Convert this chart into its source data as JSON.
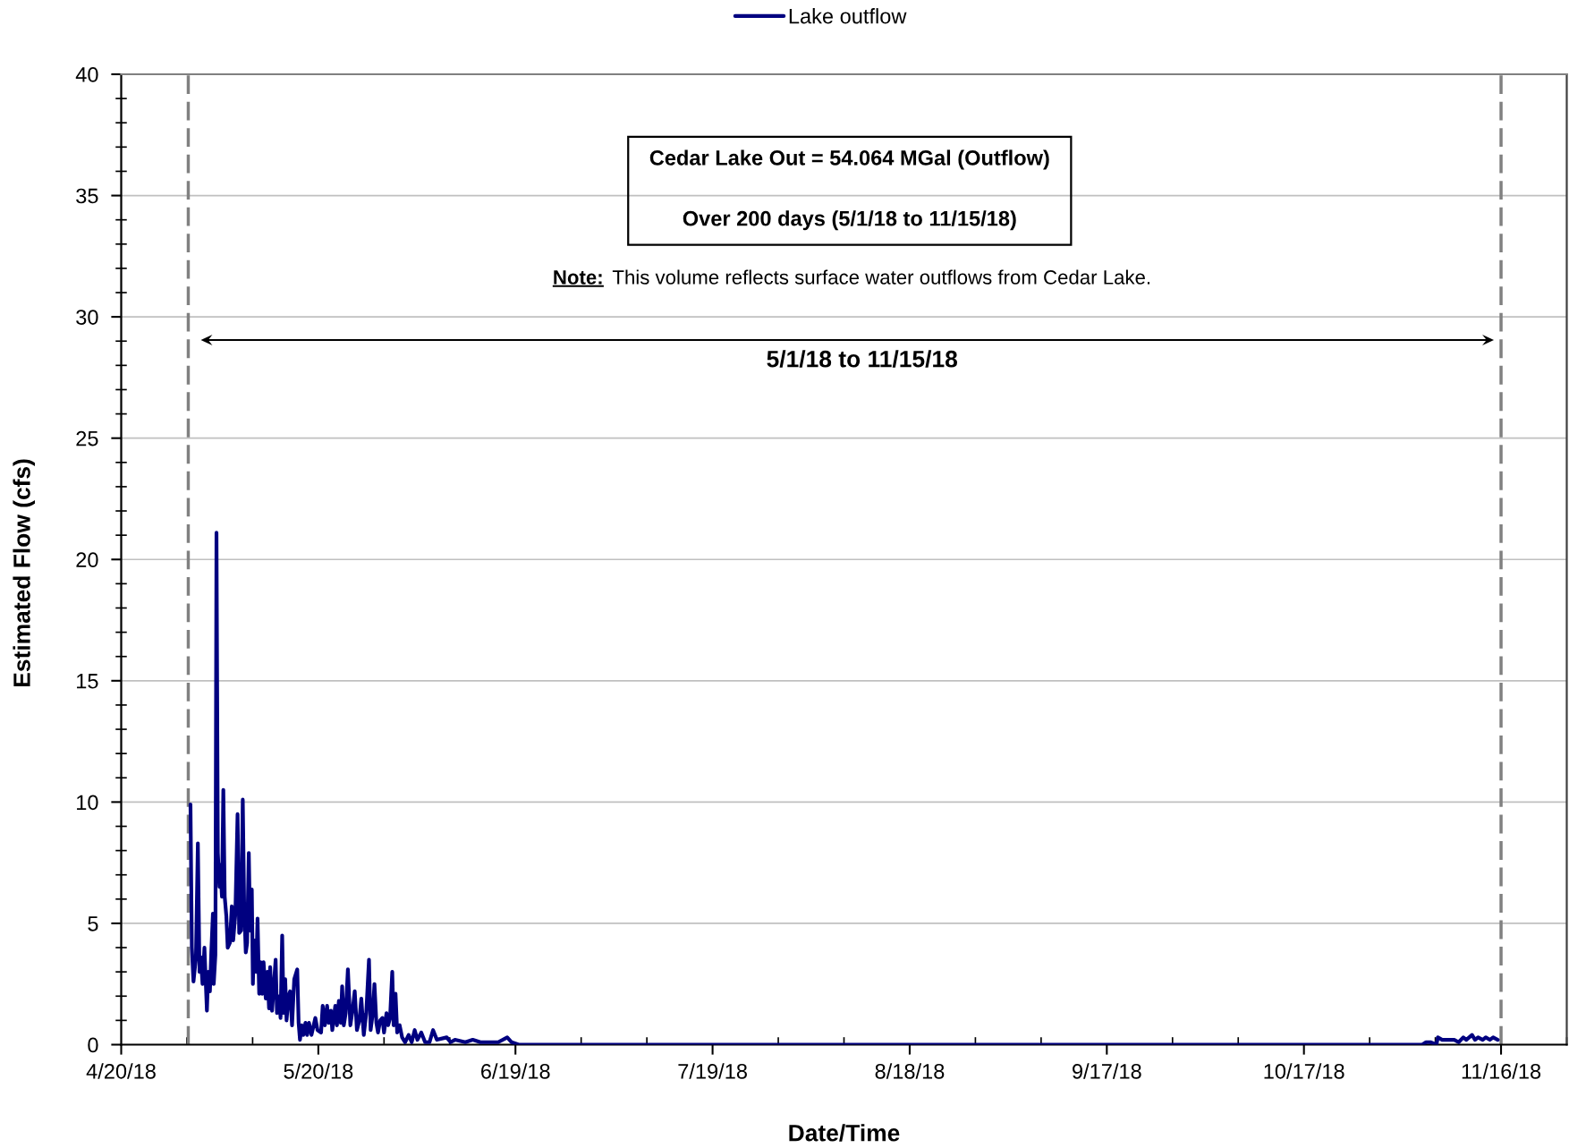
{
  "chart_data": {
    "type": "line",
    "xlabel": "Date/Time",
    "ylabel": "Estimated Flow (cfs)",
    "x": [
      "2018-04-30T13:00",
      "2018-04-30T18:00",
      "2018-05-01T00:00",
      "2018-05-01T09:00",
      "2018-05-01T16:00",
      "2018-05-01T22:00",
      "2018-05-02T03:00",
      "2018-05-02T09:00",
      "2018-05-02T16:00",
      "2018-05-03T01:00",
      "2018-05-03T06:00",
      "2018-05-03T12:00",
      "2018-05-03T17:00",
      "2018-05-03T23:00",
      "2018-05-04T02:00",
      "2018-05-04T08:00",
      "2018-05-04T12:00",
      "2018-05-04T17:00",
      "2018-05-04T23:00",
      "2018-05-05T02:00",
      "2018-05-05T08:00",
      "2018-05-05T13:00",
      "2018-05-05T18:00",
      "2018-05-06T00:00",
      "2018-05-06T05:00",
      "2018-05-06T13:00",
      "2018-05-06T20:00",
      "2018-05-07T01:00",
      "2018-05-07T09:00",
      "2018-05-07T17:00",
      "2018-05-07T23:00",
      "2018-05-08T06:00",
      "2018-05-08T12:00",
      "2018-05-08T17:00",
      "2018-05-08T23:00",
      "2018-05-09T04:00",
      "2018-05-09T10:00",
      "2018-05-09T15:00",
      "2018-05-09T21:00",
      "2018-05-10T01:00",
      "2018-05-10T05:00",
      "2018-05-10T13:00",
      "2018-05-10T18:00",
      "2018-05-11T00:00",
      "2018-05-11T05:00",
      "2018-05-11T11:00",
      "2018-05-11T16:00",
      "2018-05-12T00:00",
      "2018-05-12T06:00",
      "2018-05-12T12:00",
      "2018-05-12T16:00",
      "2018-05-12T23:00",
      "2018-05-13T04:00",
      "2018-05-13T12:00",
      "2018-05-13T17:00",
      "2018-05-14T02:00",
      "2018-05-14T06:00",
      "2018-05-14T12:00",
      "2018-05-14T17:00",
      "2018-05-14T23:00",
      "2018-05-15T04:00",
      "2018-05-15T11:00",
      "2018-05-15T17:00",
      "2018-05-16T00:00",
      "2018-05-16T08:00",
      "2018-05-16T19:00",
      "2018-05-17T00:00",
      "2018-05-17T05:00",
      "2018-05-17T11:00",
      "2018-05-17T17:00",
      "2018-05-18T01:00",
      "2018-05-18T07:00",
      "2018-05-18T14:00",
      "2018-05-18T23:00",
      "2018-05-19T13:00",
      "2018-05-19T21:00",
      "2018-05-20T10:00",
      "2018-05-20T16:00",
      "2018-05-21T00:00",
      "2018-05-21T08:00",
      "2018-05-21T14:00",
      "2018-05-21T22:00",
      "2018-05-22T03:00",
      "2018-05-22T14:00",
      "2018-05-22T20:00",
      "2018-05-23T03:00",
      "2018-05-23T10:00",
      "2018-05-23T15:00",
      "2018-05-23T21:00",
      "2018-05-24T04:00",
      "2018-05-24T12:00",
      "2018-05-24T21:00",
      "2018-05-25T06:00",
      "2018-05-25T13:00",
      "2018-05-25T21:00",
      "2018-05-26T06:00",
      "2018-05-26T13:00",
      "2018-05-26T22:00",
      "2018-05-27T07:00",
      "2018-05-27T17:00",
      "2018-05-27T23:00",
      "2018-05-28T07:00",
      "2018-05-28T13:00",
      "2018-05-28T20:00",
      "2018-05-29T02:00",
      "2018-05-29T10:00",
      "2018-05-29T18:00",
      "2018-05-30T00:00",
      "2018-05-30T09:00",
      "2018-05-30T15:00",
      "2018-05-30T22:00",
      "2018-05-31T06:00",
      "2018-05-31T11:00",
      "2018-05-31T18:00",
      "2018-06-01T00:00",
      "2018-06-01T09:00",
      "2018-06-01T18:00",
      "2018-06-02T05:00",
      "2018-06-02T18:00",
      "2018-06-03T05:00",
      "2018-06-03T16:00",
      "2018-06-04T02:00",
      "2018-06-04T16:00",
      "2018-06-05T06:00",
      "2018-06-05T22:00",
      "2018-06-06T11:00",
      "2018-06-07T01:00",
      "2018-06-08T13:00",
      "2018-06-09T03:00",
      "2018-06-09T19:00",
      "2018-06-11T09:00",
      "2018-06-12T12:00",
      "2018-06-13T16:00",
      "2018-06-16T09:00",
      "2018-06-17T18:00",
      "2018-06-18T10:00",
      "2018-06-19T12:00",
      "2018-11-04T00:00",
      "2018-11-04T14:00",
      "2018-11-05T06:00",
      "2018-11-06T04:00",
      "2018-11-06T09:00",
      "2018-11-07T01:00",
      "2018-11-07T23:00",
      "2018-11-08T21:00",
      "2018-11-09T13:00",
      "2018-11-10T06:00",
      "2018-11-10T17:00",
      "2018-11-11T14:00",
      "2018-11-12T01:00",
      "2018-11-12T12:00",
      "2018-11-13T05:00",
      "2018-11-13T16:00",
      "2018-11-14T07:00",
      "2018-11-14T19:00",
      "2018-11-15T12:00"
    ],
    "series": [
      {
        "name": "Lake outflow",
        "color": "#000080",
        "values": [
          9.9,
          4.0,
          2.6,
          3.6,
          8.3,
          3.0,
          3.6,
          2.5,
          4.0,
          1.4,
          3.0,
          2.2,
          3.8,
          5.4,
          2.5,
          3.7,
          21.1,
          7.9,
          6.5,
          7.4,
          6.1,
          10.5,
          6.1,
          5.3,
          4.0,
          4.2,
          5.7,
          4.3,
          5.4,
          9.5,
          4.6,
          4.7,
          10.1,
          5.8,
          3.8,
          4.2,
          7.9,
          4.7,
          6.4,
          2.5,
          4.3,
          3.0,
          5.2,
          2.1,
          3.4,
          2.1,
          3.4,
          1.9,
          3.0,
          1.5,
          3.2,
          1.4,
          2.2,
          3.5,
          1.3,
          2.0,
          1.1,
          4.5,
          1.3,
          2.7,
          1.0,
          2.0,
          2.2,
          0.8,
          2.7,
          3.1,
          0.9,
          0.2,
          0.8,
          0.4,
          0.9,
          0.4,
          0.9,
          0.4,
          1.1,
          0.6,
          0.5,
          1.6,
          0.8,
          1.6,
          0.9,
          1.4,
          0.6,
          1.6,
          0.8,
          1.8,
          0.9,
          2.4,
          0.8,
          1.3,
          3.1,
          0.8,
          1.5,
          2.2,
          0.6,
          1.0,
          1.9,
          0.4,
          1.3,
          3.5,
          0.6,
          1.3,
          2.5,
          0.9,
          0.5,
          1.0,
          1.1,
          0.5,
          1.3,
          0.8,
          1.1,
          3.0,
          0.8,
          2.1,
          0.5,
          0.8,
          0.3,
          0.1,
          0.4,
          0.1,
          0.6,
          0.2,
          0.5,
          0.1,
          0.1,
          0.6,
          0.2,
          0.3,
          0.1,
          0.2,
          0.1,
          0.2,
          0.1,
          0.1,
          0.3,
          0.1,
          0.0,
          0.0,
          0.1,
          0.1,
          0.0,
          0.3,
          0.2,
          0.2,
          0.2,
          0.1,
          0.3,
          0.2,
          0.4,
          0.2,
          0.3,
          0.2,
          0.3,
          0.2,
          0.3,
          0.2
        ]
      }
    ],
    "xlim": [
      "2018-04-20",
      "2018-11-26"
    ],
    "xticks": [
      {
        "value": "2018-04-20",
        "label": "4/20/18"
      },
      {
        "value": "2018-05-20",
        "label": "5/20/18"
      },
      {
        "value": "2018-06-19",
        "label": "6/19/18"
      },
      {
        "value": "2018-07-19",
        "label": "7/19/18"
      },
      {
        "value": "2018-08-18",
        "label": "8/18/18"
      },
      {
        "value": "2018-09-17",
        "label": "9/17/18"
      },
      {
        "value": "2018-10-17",
        "label": "10/17/18"
      },
      {
        "value": "2018-11-16",
        "label": "11/16/18"
      }
    ],
    "ylim": [
      0,
      40
    ],
    "yticks": [
      0,
      5,
      10,
      15,
      20,
      25,
      30,
      35,
      40
    ],
    "grid": "y",
    "legend": "top",
    "line_style": "solid",
    "ref_lines": [
      {
        "axis": "x",
        "value": "2018-04-30T05:00",
        "color": "#808080",
        "line_style": "dashed"
      },
      {
        "axis": "x",
        "value": "2018-11-16",
        "color": "#808080",
        "line_style": "dashed"
      }
    ],
    "annotations": [
      "Cedar Lake Out = 54.064 MGal (Outflow)",
      "Over 200 days (5/1/18 to 11/15/18)",
      "Note: This volume reflects surface water outflows from Cedar Lake.",
      "5/1/18 to 11/15/18"
    ]
  }
}
